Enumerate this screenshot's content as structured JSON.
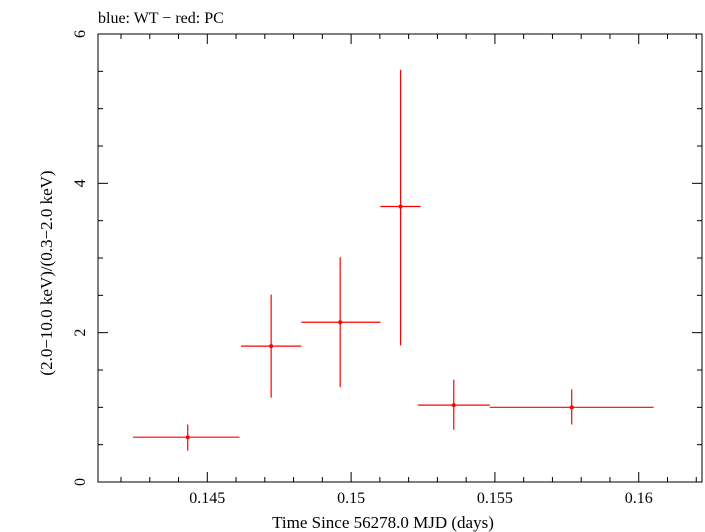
{
  "chart_data": {
    "type": "scatter",
    "title": "blue: WT − red: PC",
    "xlabel": "Time Since 56278.0 MJD (days)",
    "ylabel": "(2.0−10.0 keV)/(0.3−2.0 keV)",
    "xlim": [
      0.1412,
      0.1622
    ],
    "ylim": [
      0,
      6
    ],
    "x_ticks": [
      {
        "value": 0.145,
        "label": "0.145"
      },
      {
        "value": 0.15,
        "label": "0.15"
      },
      {
        "value": 0.155,
        "label": "0.155"
      },
      {
        "value": 0.16,
        "label": "0.16"
      }
    ],
    "y_ticks": [
      {
        "value": 0,
        "label": "0"
      },
      {
        "value": 2,
        "label": "2"
      },
      {
        "value": 4,
        "label": "4"
      },
      {
        "value": 6,
        "label": "6"
      }
    ],
    "grid": false,
    "series": [
      {
        "name": "PC",
        "color": "#ff0000",
        "points": [
          {
            "x": 0.14432,
            "x_lo": 0.14242,
            "x_hi": 0.14612,
            "y": 0.6,
            "y_lo": 0.42,
            "y_hi": 0.77
          },
          {
            "x": 0.14722,
            "x_lo": 0.14617,
            "x_hi": 0.14827,
            "y": 1.82,
            "y_hi": 2.51,
            "y_lo": 1.13
          },
          {
            "x": 0.14962,
            "x_lo": 0.14827,
            "x_hi": 0.15102,
            "y": 2.14,
            "y_hi": 3.01,
            "y_lo": 1.27
          },
          {
            "x": 0.15172,
            "x_lo": 0.15102,
            "x_hi": 0.15242,
            "y": 3.69,
            "y_hi": 5.52,
            "y_lo": 1.83
          },
          {
            "x": 0.15357,
            "x_lo": 0.15232,
            "x_hi": 0.15482,
            "y": 1.03,
            "y_hi": 1.37,
            "y_lo": 0.7
          },
          {
            "x": 0.15767,
            "x_lo": 0.15482,
            "x_hi": 0.16052,
            "y": 1.0,
            "y_hi": 1.24,
            "y_lo": 0.77
          }
        ]
      }
    ]
  }
}
